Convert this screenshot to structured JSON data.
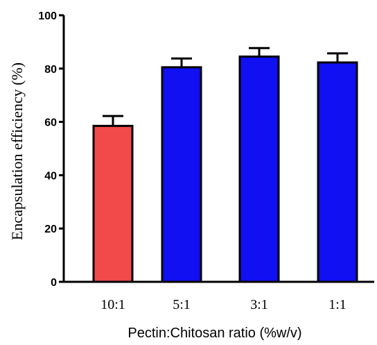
{
  "chart_data": {
    "type": "bar",
    "categories": [
      "10:1",
      "5:1",
      "3:1",
      "1:1"
    ],
    "values": [
      58.5,
      80.5,
      84.5,
      82.3
    ],
    "errors": [
      3.7,
      3.3,
      3.2,
      3.4
    ],
    "bar_colors": [
      "#f24a4a",
      "#1010f2",
      "#1010f2",
      "#1010f2"
    ],
    "ylabel": "Encapsulation efficiency (%)",
    "xlabel": "Pectin:Chitosan ratio (%w/v)",
    "ylim": [
      0,
      100
    ],
    "yticks": [
      0,
      20,
      40,
      60,
      80,
      100
    ],
    "ytick_labels": [
      "0",
      "20",
      "40",
      "60",
      "80",
      "100"
    ],
    "grid": false,
    "legend": false
  }
}
